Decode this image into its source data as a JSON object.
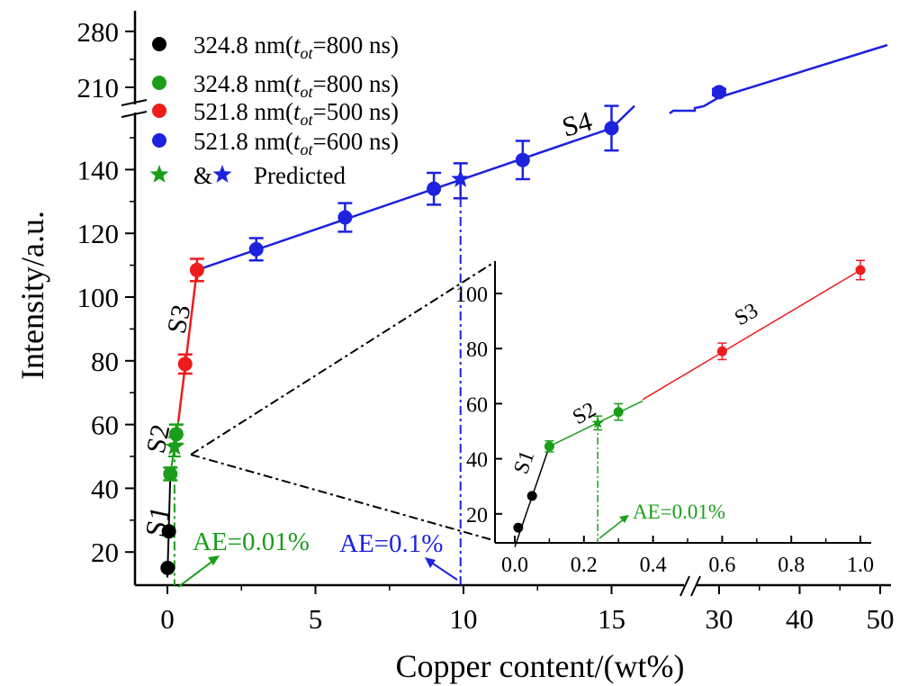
{
  "chart_data": {
    "type": "scatter",
    "xlabel": "Copper content/(wt%)",
    "ylabel": "Intensity/a.u.",
    "main": {
      "x_ticks": [
        "0",
        "5",
        "10",
        "15",
        "30",
        "40",
        "50"
      ],
      "y_ticks": [
        "20",
        "40",
        "60",
        "80",
        "100",
        "120",
        "140",
        "210",
        "280"
      ],
      "x_break": "between 15 and 30",
      "y_break": "between 150 and 200"
    },
    "legend": [
      {
        "label": "324.8 nm(t_ot=800 ns)",
        "lead": "324.8 nm(",
        "sub": "ot",
        "tail": "=800 ns)",
        "color": "#000000",
        "marker": "circle"
      },
      {
        "label": "324.8 nm(t_ot=800 ns)",
        "lead": "324.8 nm(",
        "sub": "ot",
        "tail": "=800 ns)",
        "color": "#1a9e1a",
        "marker": "circle"
      },
      {
        "label": "521.8 nm(t_ot=500 ns)",
        "lead": "521.8 nm(",
        "sub": "ot",
        "tail": "=500 ns)",
        "color": "#ee1c1c",
        "marker": "circle"
      },
      {
        "label": "521.8 nm(t_ot=600 ns)",
        "lead": "521.8 nm(",
        "sub": "ot",
        "tail": "=600 ns)",
        "color": "#1c22dd",
        "marker": "circle"
      },
      {
        "label": "& Predicted",
        "color": "#1a9e1a",
        "marker": "star"
      }
    ],
    "series": [
      {
        "name": "324.8 nm(t_ot=800 ns)",
        "color": "#000000",
        "points": [
          {
            "x": 0.01,
            "y": 15
          },
          {
            "x": 0.05,
            "y": 26.5
          }
        ]
      },
      {
        "name": "324.8 nm(t_ot=800 ns)",
        "color": "#1a9e1a",
        "points": [
          {
            "x": 0.1,
            "y": 44.5,
            "err": 2
          },
          {
            "x": 0.3,
            "y": 57,
            "err": 3
          }
        ]
      },
      {
        "name": "521.8 nm(t_ot=500 ns)",
        "color": "#ee1c1c",
        "points": [
          {
            "x": 0.6,
            "y": 79,
            "err": 3
          },
          {
            "x": 1.0,
            "y": 108.5,
            "err": 3.5
          }
        ]
      },
      {
        "name": "521.8 nm(t_ot=600 ns)",
        "color": "#1c22dd",
        "points": [
          {
            "x": 3,
            "y": 115,
            "err": 3.5
          },
          {
            "x": 6,
            "y": 125,
            "err": 4.5
          },
          {
            "x": 9,
            "y": 134,
            "err": 5
          },
          {
            "x": 12,
            "y": 143,
            "err": 6
          },
          {
            "x": 15,
            "y": 153,
            "err": 7
          },
          {
            "x": 30,
            "y": 204,
            "err": 4
          }
        ]
      }
    ],
    "predicted": [
      {
        "x": 0.24,
        "y": 53,
        "color": "#1a9e1a",
        "note": "AE=0.01%"
      },
      {
        "x": 9.9,
        "y": 137,
        "color": "#1c22dd",
        "note": "AE=0.1%"
      }
    ],
    "segments": [
      {
        "label": "S1",
        "color": "#000000",
        "x": [
          0.0,
          0.1
        ],
        "y": [
          12,
          44.5
        ]
      },
      {
        "label": "S2",
        "color": "#1a9e1a",
        "x": [
          0.1,
          0.37
        ],
        "y": [
          44.5,
          61
        ]
      },
      {
        "label": "S3",
        "color": "#ee1c1c",
        "x": [
          0.37,
          1.0
        ],
        "y": [
          61,
          108.5
        ]
      },
      {
        "label": "S4",
        "color": "#1c22dd",
        "x": [
          1.0,
          50
        ],
        "y": [
          108.5,
          265
        ]
      }
    ],
    "annotations": {
      "ae_green": "AE=0.01%",
      "ae_blue": "AE=0.1%",
      "s1": "S1",
      "s2": "S2",
      "s3": "S3",
      "s4": "S4"
    },
    "inset": {
      "x_ticks": [
        "0.0",
        "0.2",
        "0.4",
        "0.6",
        "0.8",
        "1.0"
      ],
      "y_ticks": [
        "20",
        "40",
        "60",
        "80",
        "100"
      ],
      "xlim": [
        -0.04,
        1.04
      ],
      "ylim": [
        10,
        110
      ],
      "annotation": "AE=0.01%",
      "predicted_x": 0.24,
      "predicted_y": 53
    }
  }
}
